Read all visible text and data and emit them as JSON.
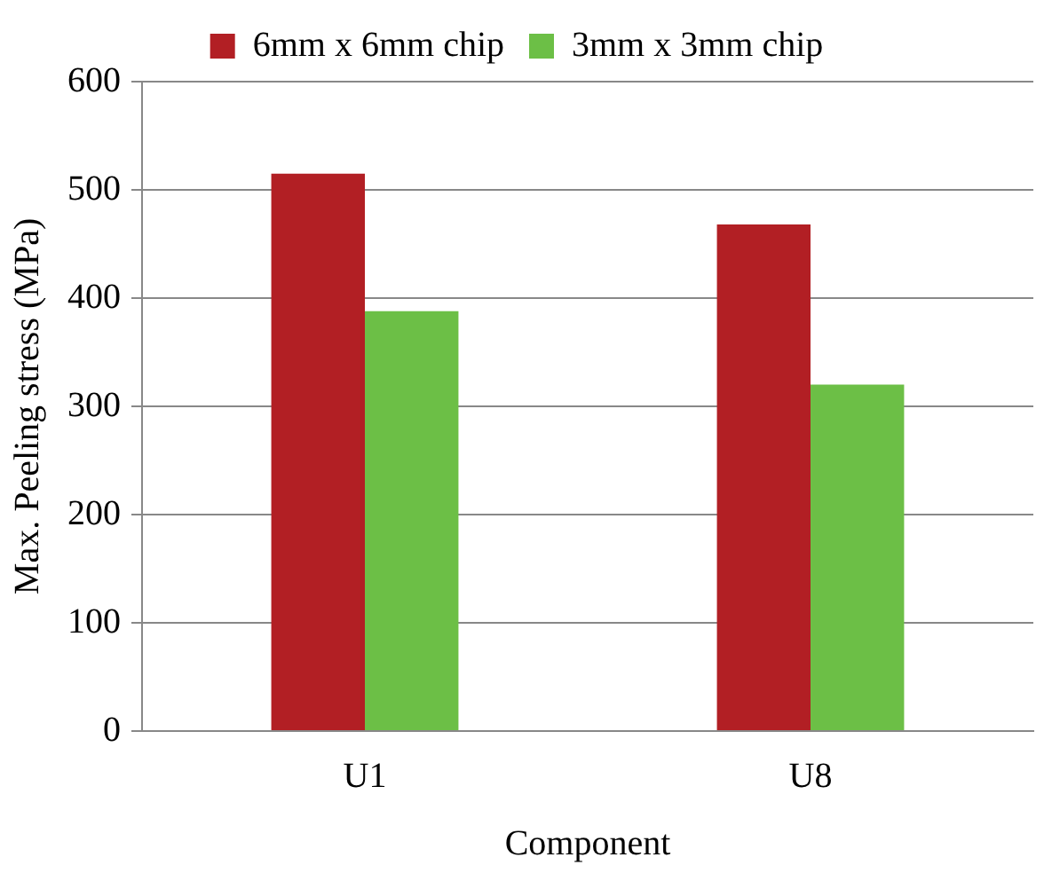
{
  "chart_data": {
    "type": "bar",
    "xlabel": "Component",
    "ylabel": "Max. Peeling stress (MPa)",
    "categories": [
      "U1",
      "U8"
    ],
    "series": [
      {
        "name": "6mm x 6mm chip",
        "color": "#b21f24",
        "values": [
          515,
          468
        ]
      },
      {
        "name": "3mm x 3mm chip",
        "color": "#6cbf46",
        "values": [
          388,
          320
        ]
      }
    ],
    "ylim": [
      0,
      600
    ],
    "yticks": [
      0,
      100,
      200,
      300,
      400,
      500,
      600
    ],
    "grid": "y",
    "legend": "top"
  }
}
